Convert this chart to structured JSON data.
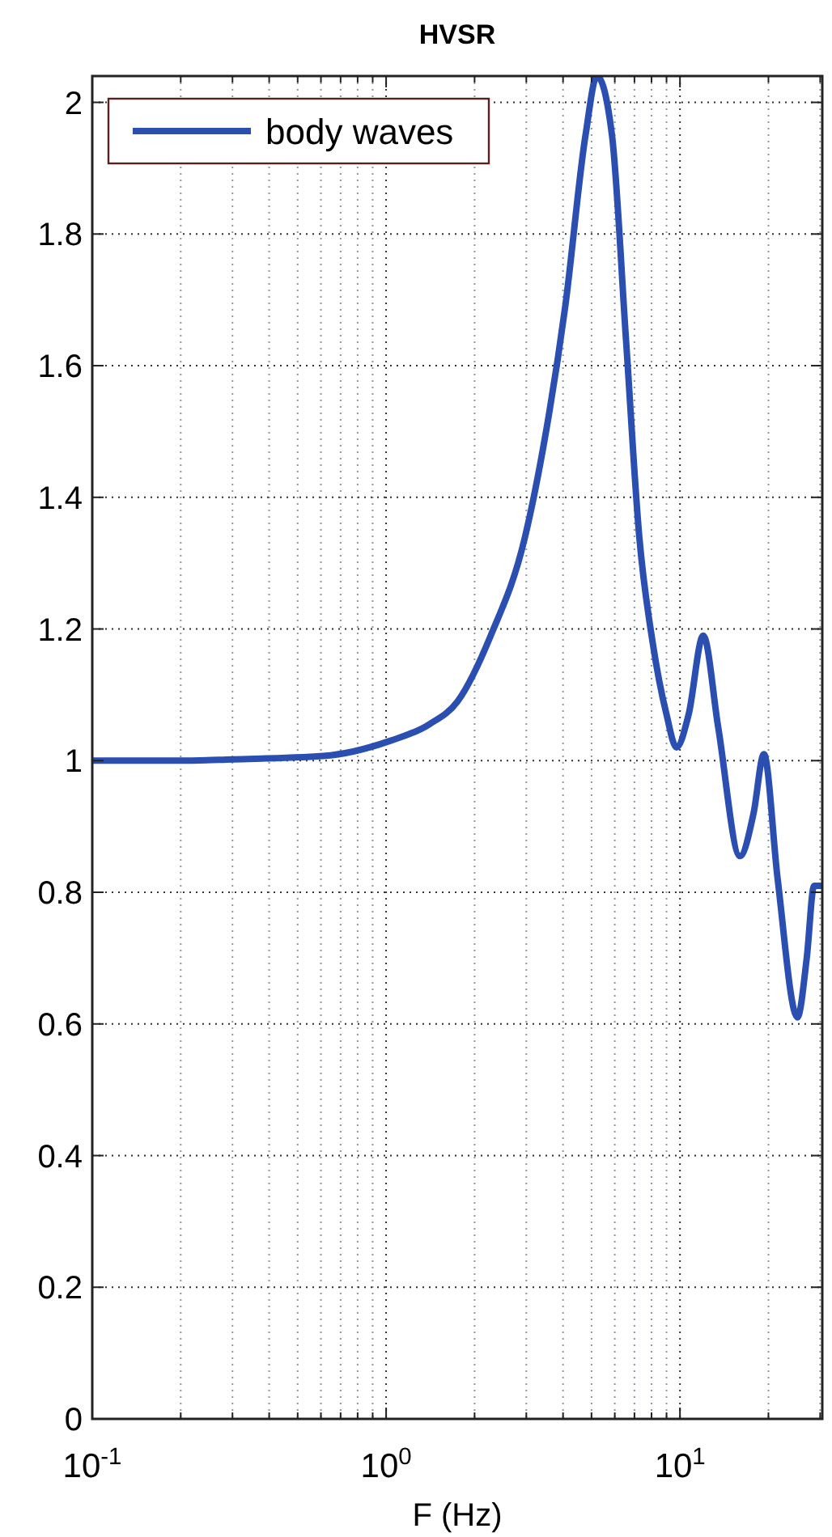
{
  "chart_data": {
    "type": "line",
    "title": "HVSR",
    "xlabel": "F (Hz)",
    "log": "x",
    "grid": true,
    "legend": "top left",
    "line_style": "solid",
    "xlim": [
      0.1,
      30.5
    ],
    "xticks": [
      {
        "value": 0.1,
        "label": "10$^{-1}$"
      },
      {
        "value": 1,
        "label": "10$^{0}$"
      },
      {
        "value": 10,
        "label": "10$^{1}$"
      }
    ],
    "ylim": [
      0,
      2.04
    ],
    "yticks": [
      0,
      0.2,
      0.4,
      0.6,
      0.8,
      1,
      1.2,
      1.4,
      1.6,
      1.8,
      2
    ],
    "series": [
      {
        "name": "body waves",
        "color": "#2b4fb0",
        "x": [
          0.1,
          0.2,
          0.3,
          0.61,
          1.03,
          1.4,
          1.75,
          2.27,
          2.97,
          3.47,
          4.07,
          4.77,
          5.22,
          5.87,
          6.55,
          7.27,
          8.07,
          9.0,
          9.73,
          10.7,
          12.0,
          13.5,
          16.0,
          17.8,
          19.3,
          21.5,
          25.1,
          27.0,
          28.6,
          30.5
        ],
        "values": [
          1.0,
          1.0,
          1.002,
          1.007,
          1.03,
          1.055,
          1.09,
          1.19,
          1.34,
          1.49,
          1.69,
          1.95,
          2.04,
          1.95,
          1.64,
          1.34,
          1.18,
          1.07,
          1.02,
          1.07,
          1.19,
          1.05,
          0.855,
          0.92,
          1.01,
          0.82,
          0.61,
          0.7,
          0.81,
          0.81
        ]
      }
    ]
  }
}
